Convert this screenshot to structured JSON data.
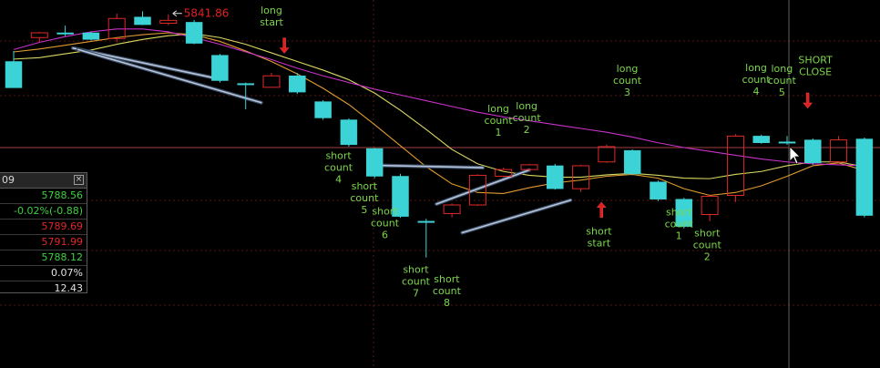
{
  "chart_data": {
    "type": "candlestick",
    "ylim": [
      5775,
      5845
    ],
    "candles": [
      {
        "o": 5832.0,
        "h": 5834.2,
        "l": 5826.5,
        "c": 5826.5
      },
      {
        "o": 5837.0,
        "h": 5838.2,
        "l": 5836.0,
        "c": 5838.0
      },
      {
        "o": 5838.0,
        "h": 5839.5,
        "l": 5837.3,
        "c": 5838.0
      },
      {
        "o": 5838.0,
        "h": 5838.2,
        "l": 5836.4,
        "c": 5836.6
      },
      {
        "o": 5836.8,
        "h": 5842.0,
        "l": 5836.0,
        "c": 5841.0
      },
      {
        "o": 5841.3,
        "h": 5842.5,
        "l": 5839.6,
        "c": 5839.7
      },
      {
        "o": 5840.0,
        "h": 5841.86,
        "l": 5839.6,
        "c": 5840.6
      },
      {
        "o": 5840.2,
        "h": 5840.7,
        "l": 5835.6,
        "c": 5835.8
      },
      {
        "o": 5833.3,
        "h": 5833.6,
        "l": 5827.6,
        "c": 5828.0
      },
      {
        "o": 5827.4,
        "h": 5827.6,
        "l": 5822.0,
        "c": 5827.4
      },
      {
        "o": 5826.6,
        "h": 5829.6,
        "l": 5826.6,
        "c": 5829.0
      },
      {
        "o": 5829.0,
        "h": 5829.6,
        "l": 5825.2,
        "c": 5825.6
      },
      {
        "o": 5823.6,
        "h": 5823.9,
        "l": 5819.8,
        "c": 5820.2
      },
      {
        "o": 5819.8,
        "h": 5820.1,
        "l": 5814.2,
        "c": 5814.6
      },
      {
        "o": 5813.8,
        "h": 5813.9,
        "l": 5807.6,
        "c": 5808.0
      },
      {
        "o": 5808.0,
        "h": 5808.5,
        "l": 5799.3,
        "c": 5799.6
      },
      {
        "o": 5798.6,
        "h": 5799.1,
        "l": 5791.0,
        "c": 5798.4
      },
      {
        "o": 5800.2,
        "h": 5802.3,
        "l": 5799.4,
        "c": 5802.0
      },
      {
        "o": 5802.0,
        "h": 5808.4,
        "l": 5801.8,
        "c": 5808.2
      },
      {
        "o": 5808.0,
        "h": 5809.8,
        "l": 5807.8,
        "c": 5809.4
      },
      {
        "o": 5809.4,
        "h": 5810.6,
        "l": 5809.2,
        "c": 5810.4
      },
      {
        "o": 5810.2,
        "h": 5810.6,
        "l": 5805.2,
        "c": 5805.4
      },
      {
        "o": 5805.4,
        "h": 5810.4,
        "l": 5804.7,
        "c": 5810.2
      },
      {
        "o": 5811.0,
        "h": 5814.6,
        "l": 5810.8,
        "c": 5814.2
      },
      {
        "o": 5813.4,
        "h": 5813.6,
        "l": 5808.2,
        "c": 5808.5
      },
      {
        "o": 5806.8,
        "h": 5807.1,
        "l": 5802.8,
        "c": 5803.2
      },
      {
        "o": 5803.2,
        "h": 5803.5,
        "l": 5797.1,
        "c": 5797.5
      },
      {
        "o": 5800.0,
        "h": 5804.2,
        "l": 5798.6,
        "c": 5803.8
      },
      {
        "o": 5804.0,
        "h": 5816.8,
        "l": 5802.6,
        "c": 5816.4
      },
      {
        "o": 5816.4,
        "h": 5816.7,
        "l": 5814.8,
        "c": 5815.0
      },
      {
        "o": 5815.2,
        "h": 5816.4,
        "l": 5814.6,
        "c": 5815.2
      },
      {
        "o": 5815.6,
        "h": 5815.9,
        "l": 5810.4,
        "c": 5810.8
      },
      {
        "o": 5811.0,
        "h": 5816.4,
        "l": 5810.8,
        "c": 5815.6
      },
      {
        "o": 5815.8,
        "h": 5816.1,
        "l": 5799.4,
        "c": 5799.8
      }
    ],
    "moving_averages": [
      {
        "color": "#d8d860",
        "values": [
          5832.5,
          5832.8,
          5833.6,
          5834.4,
          5835.6,
          5836.6,
          5837.4,
          5837.8,
          5837.0,
          5835.6,
          5833.8,
          5832.0,
          5830.2,
          5828.2,
          5825.4,
          5821.8,
          5817.8,
          5813.6,
          5810.6,
          5809.0,
          5808.2,
          5807.8,
          5807.8,
          5808.3,
          5808.6,
          5808.2,
          5807.6,
          5807.5,
          5808.4,
          5809.0,
          5810.2,
          5811.0,
          5811.0,
          5810.0
        ]
      },
      {
        "color": "#e09a30",
        "values": [
          5834.0,
          5834.6,
          5835.4,
          5836.2,
          5837.0,
          5837.6,
          5838.0,
          5837.6,
          5836.2,
          5834.2,
          5832.0,
          5829.4,
          5826.4,
          5823.0,
          5818.8,
          5814.4,
          5810.0,
          5806.4,
          5804.6,
          5804.4,
          5805.6,
          5806.6,
          5807.2,
          5808.0,
          5808.4,
          5807.6,
          5805.4,
          5804.0,
          5804.6,
          5806.0,
          5808.0,
          5810.2,
          5810.8,
          5809.2
        ]
      },
      {
        "color": "#c832c8",
        "values": [
          5834.5,
          5836.0,
          5837.2,
          5838.2,
          5838.8,
          5838.8,
          5838.2,
          5837.0,
          5835.6,
          5834.0,
          5832.4,
          5830.6,
          5829.0,
          5827.6,
          5826.2,
          5825.0,
          5823.8,
          5822.6,
          5821.4,
          5820.4,
          5819.6,
          5818.8,
          5818.0,
          5817.2,
          5816.2,
          5815.0,
          5814.0,
          5813.2,
          5812.4,
          5811.6,
          5811.0,
          5810.6,
          5810.4,
          5810.2
        ]
      }
    ],
    "trendlines": [
      [
        [
          2.3,
          5834.8
        ],
        [
          8.0,
          5828.3
        ]
      ],
      [
        [
          2.5,
          5834.5
        ],
        [
          9.6,
          5823.4
        ]
      ],
      [
        [
          13.9,
          5810.3
        ],
        [
          18.2,
          5809.8
        ]
      ],
      [
        [
          16.4,
          5802.2
        ],
        [
          20.0,
          5809.3
        ]
      ],
      [
        [
          17.4,
          5796.2
        ],
        [
          21.6,
          5803.0
        ]
      ]
    ],
    "annotations": [
      {
        "lines": [
          "long",
          "start"
        ],
        "x": 10.0,
        "y": 5842.0
      },
      {
        "lines": [
          "short",
          "count",
          "4"
        ],
        "x": 12.6,
        "y": 5811.6
      },
      {
        "lines": [
          "short",
          "count",
          "5"
        ],
        "x": 13.6,
        "y": 5805.2
      },
      {
        "lines": [
          "short",
          "count",
          "6"
        ],
        "x": 14.4,
        "y": 5800.0
      },
      {
        "lines": [
          "short",
          "count",
          "7"
        ],
        "x": 15.6,
        "y": 5787.8
      },
      {
        "lines": [
          "short",
          "count",
          "8"
        ],
        "x": 16.8,
        "y": 5785.8
      },
      {
        "lines": [
          "long",
          "count",
          "1"
        ],
        "x": 18.8,
        "y": 5821.4
      },
      {
        "lines": [
          "long",
          "count",
          "2"
        ],
        "x": 19.9,
        "y": 5822.0
      },
      {
        "lines": [
          "long",
          "count",
          "3"
        ],
        "x": 23.8,
        "y": 5829.8
      },
      {
        "lines": [
          "short",
          "start"
        ],
        "x": 22.7,
        "y": 5795.8
      },
      {
        "lines": [
          "short",
          "count",
          "1"
        ],
        "x": 25.8,
        "y": 5799.8
      },
      {
        "lines": [
          "short",
          "count",
          "2"
        ],
        "x": 26.9,
        "y": 5795.4
      },
      {
        "lines": [
          "long",
          "count",
          "4"
        ],
        "x": 28.8,
        "y": 5830.0
      },
      {
        "lines": [
          "long",
          "count",
          "5"
        ],
        "x": 29.8,
        "y": 5829.8
      },
      {
        "lines": [
          "SHORT",
          "CLOSE"
        ],
        "x": 31.1,
        "y": 5831.6
      }
    ],
    "arrows": [
      {
        "x": 10.5,
        "y": 5833.7,
        "dir": "down"
      },
      {
        "x": 22.8,
        "y": 5802.6,
        "dir": "up"
      },
      {
        "x": 30.8,
        "y": 5822.2,
        "dir": "down"
      }
    ],
    "price_label": "5841.86",
    "price_label_at": {
      "x": 6.6,
      "y": 5841.86
    }
  },
  "info_panel": {
    "header": "09",
    "rows": [
      {
        "text": "5788.56",
        "color": "green"
      },
      {
        "text": "-0.02%(-0.88)",
        "color": "green"
      },
      {
        "text": "5789.69",
        "color": "red"
      },
      {
        "text": "5791.99",
        "color": "red"
      },
      {
        "text": "5788.12",
        "color": "green"
      },
      {
        "text": "0.07%",
        "color": "white"
      },
      {
        "text": "12.43",
        "color": "white"
      }
    ]
  }
}
